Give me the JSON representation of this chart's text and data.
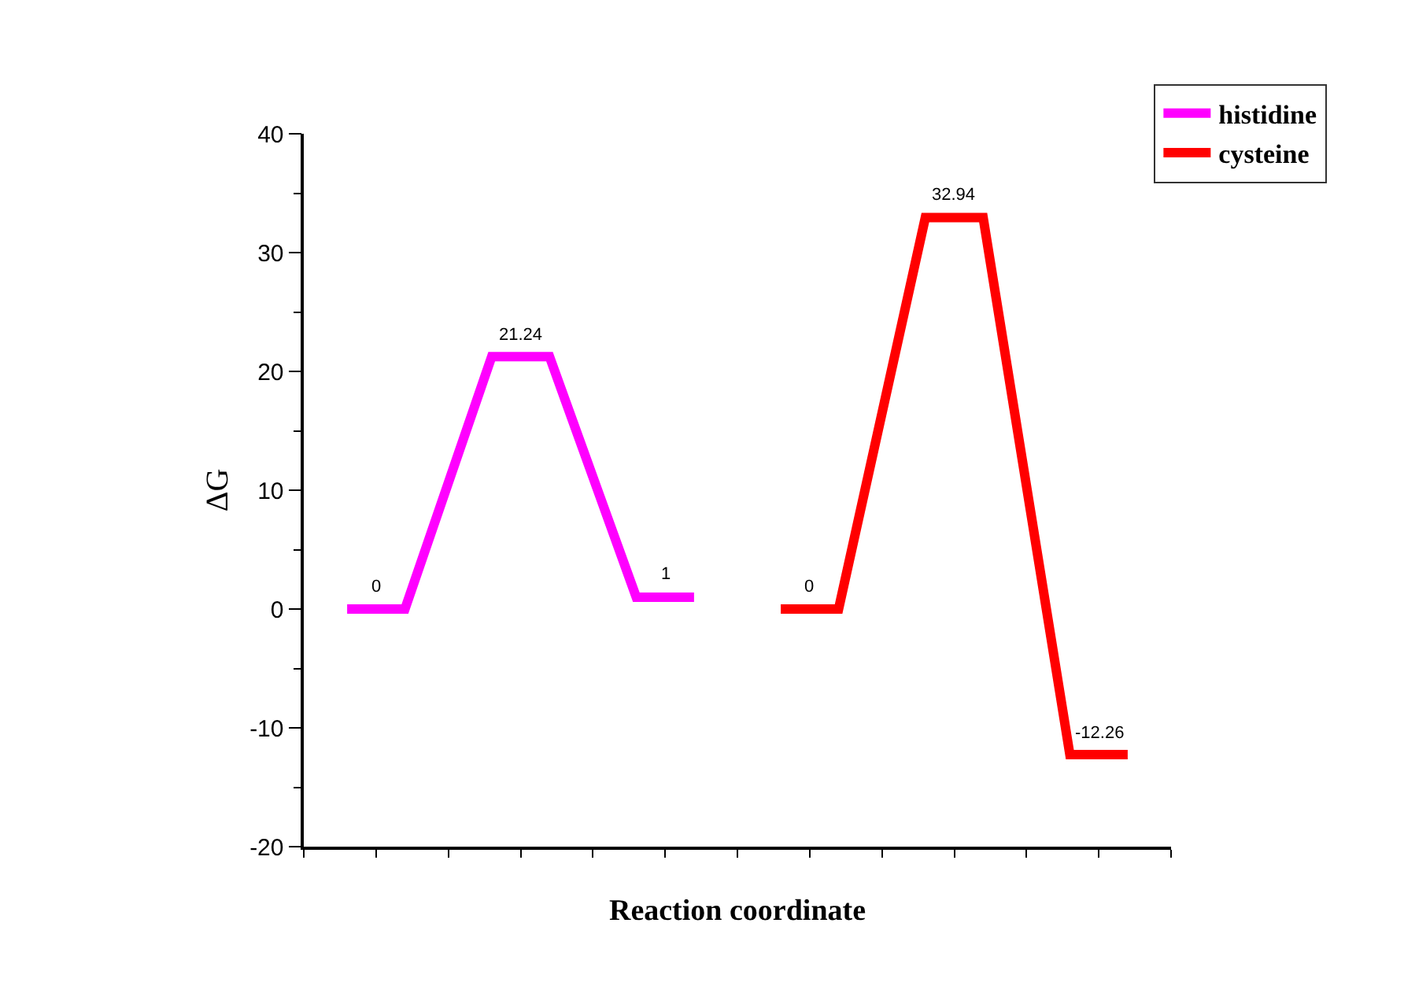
{
  "chart_data": {
    "type": "line",
    "xlabel": "Reaction coordinate",
    "ylabel": "ΔG",
    "categories": [
      null,
      null,
      null,
      null,
      null,
      null,
      null,
      null,
      null,
      null,
      null,
      null,
      null,
      null,
      null,
      null,
      null,
      null,
      null,
      null,
      null,
      null,
      null,
      null,
      null,
      null,
      null,
      null,
      null,
      null
    ],
    "ylim": [
      -20,
      40
    ],
    "yticks": [
      -20,
      -10,
      0,
      10,
      20,
      30,
      40
    ],
    "legend": "top right",
    "marker": "none",
    "line_style": "solid",
    "series": [
      {
        "name": "histidine",
        "color": "#ff00ff",
        "values": [
          null,
          0,
          null,
          0,
          null,
          null,
          21.24,
          null,
          21.24,
          null,
          null,
          1,
          null,
          1,
          null,
          null,
          null,
          null,
          null,
          null,
          null,
          null,
          null,
          null,
          null,
          null,
          null,
          null,
          null,
          null
        ],
        "value_labels": [
          null,
          "0",
          null,
          null,
          null,
          null,
          "21.24",
          null,
          null,
          null,
          null,
          "1",
          null,
          null,
          null,
          null,
          null,
          null,
          null,
          null,
          null,
          null,
          null,
          null,
          null,
          null,
          null,
          null,
          null,
          null
        ]
      },
      {
        "name": "cysteine",
        "color": "#ff0000",
        "values": [
          null,
          null,
          null,
          null,
          null,
          null,
          null,
          null,
          null,
          null,
          null,
          null,
          null,
          null,
          null,
          null,
          0,
          null,
          0,
          null,
          null,
          32.94,
          null,
          32.94,
          null,
          null,
          -12.26,
          null,
          -12.26,
          null
        ],
        "value_labels": [
          null,
          null,
          null,
          null,
          null,
          null,
          null,
          null,
          null,
          null,
          null,
          null,
          null,
          null,
          null,
          null,
          "0",
          null,
          null,
          null,
          null,
          "32.94",
          null,
          null,
          null,
          null,
          "-12.26",
          null,
          null,
          null
        ]
      }
    ]
  }
}
